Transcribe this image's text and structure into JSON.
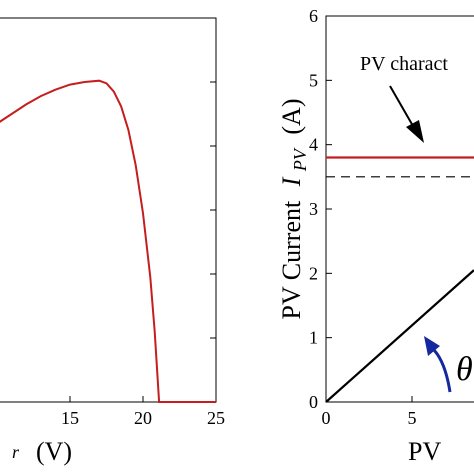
{
  "chart_data": [
    {
      "type": "line",
      "title": "",
      "xlabel_visible": "(V)",
      "ylabel": "",
      "xlim": [
        0,
        25
      ],
      "xticks": [
        "15",
        "20",
        "25"
      ],
      "grid": false,
      "series": [
        {
          "color": "#c41e1e",
          "points": [
            [
              9,
              4.2
            ],
            [
              10,
              4.35
            ],
            [
              11,
              4.5
            ],
            [
              12,
              4.65
            ],
            [
              13,
              4.78
            ],
            [
              14,
              4.88
            ],
            [
              15,
              4.96
            ],
            [
              16,
              5.0
            ],
            [
              17,
              5.02
            ],
            [
              17.5,
              4.98
            ],
            [
              18,
              4.85
            ],
            [
              18.5,
              4.62
            ],
            [
              19,
              4.25
            ],
            [
              19.5,
              3.7
            ],
            [
              20,
              2.95
            ],
            [
              20.5,
              1.95
            ],
            [
              20.8,
              1.1
            ],
            [
              21.1,
              0.0
            ],
            [
              25,
              0.0
            ]
          ]
        }
      ]
    },
    {
      "type": "line",
      "title": "",
      "xlabel_visible": "PV",
      "ylabel_text": "PV Current",
      "ylabel_symbol": "I",
      "ylabel_subscript": "PV",
      "ylabel_unit": "(A)",
      "xlim": [
        0,
        12
      ],
      "ylim": [
        0,
        6
      ],
      "xticks": [
        "0",
        "5"
      ],
      "yticks": [
        "0",
        "1",
        "2",
        "3",
        "4",
        "5",
        "6"
      ],
      "grid": false,
      "annotation": "PV charact",
      "theta_label": "θ",
      "series": [
        {
          "style": "solid",
          "color": "#c41e1e",
          "points": [
            [
              0,
              3.8
            ],
            [
              12,
              3.8
            ]
          ]
        },
        {
          "style": "dashed",
          "color": "#000000",
          "points": [
            [
              0,
              3.5
            ],
            [
              12,
              3.5
            ]
          ]
        },
        {
          "style": "solid",
          "color": "#000000",
          "points": [
            [
              0,
              0
            ],
            [
              10,
              2.05
            ]
          ]
        }
      ]
    }
  ]
}
